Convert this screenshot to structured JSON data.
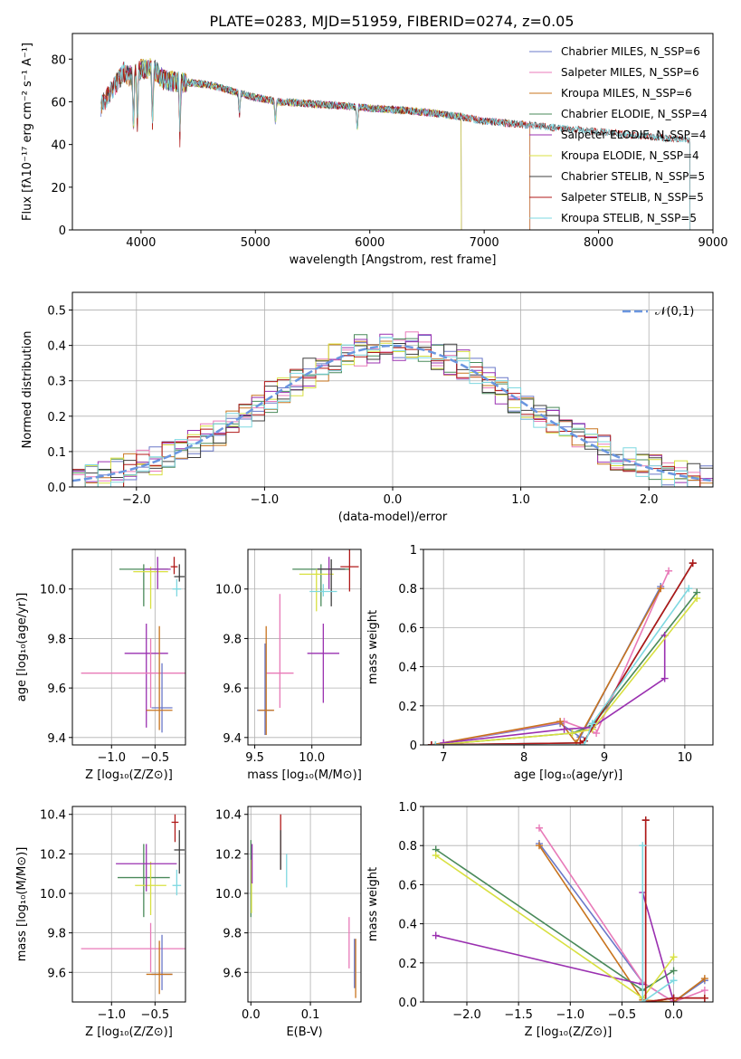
{
  "title": "PLATE=0283, MJD=51959, FIBERID=0274, z=0.05",
  "chart_data": [
    {
      "type": "line",
      "xlabel": "wavelength [Angstrom, rest frame]",
      "ylabel": "Flux [fλ10⁻¹⁷ erg cm⁻² s⁻¹ A⁻¹]",
      "xlim": [
        3400,
        9000
      ],
      "ylim": [
        0,
        92
      ],
      "xticks": [
        4000,
        5000,
        6000,
        7000,
        8000,
        9000
      ],
      "yticks": [
        0,
        20,
        40,
        60,
        80
      ],
      "legend_loc": "upper right",
      "series": [
        {
          "name": "Chabrier MILES, N_SSP=6",
          "color": "#6a78c8",
          "range": [
            3650,
            7400
          ]
        },
        {
          "name": "Salpeter MILES, N_SSP=6",
          "color": "#e87ab8",
          "range": [
            3650,
            7400
          ]
        },
        {
          "name": "Kroupa MILES, N_SSP=6",
          "color": "#c8741e",
          "range": [
            3650,
            7400
          ]
        },
        {
          "name": "Chabrier ELODIE, N_SSP=4",
          "color": "#4a8a5a",
          "range": [
            3900,
            6800
          ]
        },
        {
          "name": "Salpeter ELODIE, N_SSP=4",
          "color": "#9a30b0",
          "range": [
            3900,
            6800
          ]
        },
        {
          "name": "Kroupa ELODIE, N_SSP=4",
          "color": "#d8e040",
          "range": [
            3900,
            6800
          ]
        },
        {
          "name": "Chabrier STELIB, N_SSP=5",
          "color": "#404040",
          "range": [
            3650,
            8800
          ]
        },
        {
          "name": "Salpeter STELIB, N_SSP=5",
          "color": "#b01818",
          "range": [
            3650,
            8800
          ]
        },
        {
          "name": "Kroupa STELIB, N_SSP=5",
          "color": "#7ed8e0",
          "range": [
            3650,
            8800
          ]
        }
      ],
      "data_envelope": {
        "x": [
          3650,
          3700,
          3750,
          3800,
          3850,
          3900,
          4000,
          4100,
          4200,
          4400,
          4600,
          4800,
          5000,
          5200,
          5500,
          5800,
          6000,
          6300,
          6500,
          6800,
          7000,
          7400,
          7800,
          8200,
          8600,
          8800
        ],
        "y": [
          58,
          62,
          66,
          70,
          74,
          72,
          75,
          76,
          70,
          69,
          68,
          65,
          62,
          60,
          59,
          58,
          57,
          56,
          55,
          53,
          51,
          49,
          47,
          45,
          43,
          42
        ]
      },
      "segment_colors": [
        "#6a78c8",
        "#e87ab8",
        "#c8741e",
        "#4a8a5a",
        "#9a30b0",
        "#d8e040",
        "#404040",
        "#b01818",
        "#7ed8e0"
      ]
    },
    {
      "type": "histogram",
      "xlabel": "(data-model)/error",
      "ylabel": "Normed distribution",
      "xlim": [
        -2.5,
        2.5
      ],
      "ylim": [
        0,
        0.55
      ],
      "xticks": [
        -2,
        -1,
        0,
        1,
        2
      ],
      "yticks": [
        0.0,
        0.1,
        0.2,
        0.3,
        0.4,
        0.5
      ],
      "grid": true,
      "legend_loc": "upper right",
      "reference": {
        "name": "𝒩(0,1)",
        "color": "#6a96e0"
      },
      "bin_width": 0.1,
      "series_colors": [
        "#6a78c8",
        "#e87ab8",
        "#c8741e",
        "#4a8a5a",
        "#9a30b0",
        "#d8e040",
        "#404040",
        "#b01818",
        "#7ed8e0"
      ]
    },
    {
      "type": "scatter",
      "xlabel": "Z [log₁₀(Z/Z⊙)]",
      "ylabel": "age  [log₁₀(age/yr)]",
      "xlim": [
        -1.45,
        -0.15
      ],
      "ylim": [
        9.37,
        10.16
      ],
      "xticks": [
        -1.0,
        -0.5
      ],
      "yticks": [
        9.4,
        9.6,
        9.8,
        10.0
      ],
      "grid": true,
      "points": [
        {
          "x": -0.63,
          "y": 10.08,
          "xe": 0.28,
          "ye": [
            0.15,
            0.02
          ],
          "color": "#4a8a5a"
        },
        {
          "x": -0.55,
          "y": 10.07,
          "xe": 0.2,
          "ye": [
            0.15,
            0.02
          ],
          "color": "#d8e040"
        },
        {
          "x": -0.47,
          "y": 10.08,
          "xe": 0.15,
          "ye": [
            0.08,
            0.05
          ],
          "color": "#9a30b0"
        },
        {
          "x": -0.28,
          "y": 10.09,
          "xe": 0.04,
          "ye": [
            0.03,
            0.04
          ],
          "color": "#b01818"
        },
        {
          "x": -0.22,
          "y": 10.05,
          "xe": 0.06,
          "ye": [
            0.02,
            0.05
          ],
          "color": "#404040"
        },
        {
          "x": -0.25,
          "y": 10.0,
          "xe": 0.05,
          "ye": [
            0.03,
            0.04
          ],
          "color": "#7ed8e0"
        },
        {
          "x": -0.6,
          "y": 9.74,
          "xe": 0.25,
          "ye": [
            0.3,
            0.12
          ],
          "color": "#9a30b0"
        },
        {
          "x": -0.55,
          "y": 9.66,
          "xe": 0.8,
          "ye": [
            0.14,
            0.14
          ],
          "color": "#e87ab8"
        },
        {
          "x": -0.42,
          "y": 9.52,
          "xe": 0.12,
          "ye": [
            0.1,
            0.18
          ],
          "color": "#6a78c8"
        },
        {
          "x": -0.45,
          "y": 9.51,
          "xe": 0.15,
          "ye": [
            0.08,
            0.34
          ],
          "color": "#c8741e"
        }
      ]
    },
    {
      "type": "scatter",
      "xlabel": "mass [log₁₀(M/M⊙)]",
      "ylabel": "",
      "xlim": [
        9.44,
        10.43
      ],
      "ylim": [
        9.37,
        10.16
      ],
      "xticks": [
        9.5,
        10.0
      ],
      "yticks": [
        9.4,
        9.6,
        9.8,
        10.0
      ],
      "grid": true,
      "points": [
        {
          "x": 10.08,
          "y": 10.08,
          "xe": 0.25,
          "ye": [
            0.15,
            0.02
          ],
          "color": "#4a8a5a"
        },
        {
          "x": 10.04,
          "y": 10.06,
          "xe": 0.15,
          "ye": [
            0.15,
            0.02
          ],
          "color": "#d8e040"
        },
        {
          "x": 10.15,
          "y": 10.08,
          "xe": 0.1,
          "ye": [
            0.08,
            0.05
          ],
          "color": "#9a30b0"
        },
        {
          "x": 10.33,
          "y": 10.09,
          "xe": 0.08,
          "ye": [
            0.1,
            0.1
          ],
          "color": "#b01818"
        },
        {
          "x": 10.17,
          "y": 10.08,
          "xe": 0.12,
          "ye": [
            0.15,
            0.04
          ],
          "color": "#404040"
        },
        {
          "x": 10.1,
          "y": 9.99,
          "xe": 0.12,
          "ye": [
            0.02,
            0.03
          ],
          "color": "#7ed8e0"
        },
        {
          "x": 10.1,
          "y": 9.74,
          "xe": 0.14,
          "ye": [
            0.2,
            0.12
          ],
          "color": "#9a30b0"
        },
        {
          "x": 9.72,
          "y": 9.66,
          "xe": 0.12,
          "ye": [
            0.14,
            0.32
          ],
          "color": "#e87ab8"
        },
        {
          "x": 9.59,
          "y": 9.51,
          "xe": 0.07,
          "ye": [
            0.1,
            0.27
          ],
          "color": "#6a78c8"
        },
        {
          "x": 9.6,
          "y": 9.51,
          "xe": 0.07,
          "ye": [
            0.1,
            0.34
          ],
          "color": "#c8741e"
        }
      ]
    },
    {
      "type": "line",
      "xlabel": "age  [log₁₀(age/yr)]",
      "ylabel": "mass weight",
      "xlim": [
        6.75,
        10.35
      ],
      "ylim": [
        0,
        1.0
      ],
      "xticks": [
        7,
        8,
        9,
        10
      ],
      "yticks": [
        0.0,
        0.2,
        0.4,
        0.6,
        0.8,
        1.0
      ],
      "grid": true,
      "series": [
        {
          "color": "#6a78c8",
          "x": [
            6.85,
            8.45,
            8.7,
            9.7
          ],
          "y": [
            0.0,
            0.11,
            0.04,
            0.81
          ]
        },
        {
          "color": "#e87ab8",
          "x": [
            6.85,
            8.5,
            8.9,
            9.8
          ],
          "y": [
            0.0,
            0.12,
            0.06,
            0.89
          ]
        },
        {
          "color": "#c8741e",
          "x": [
            6.85,
            8.45,
            8.65,
            9.7
          ],
          "y": [
            0.0,
            0.12,
            0.01,
            0.8
          ]
        },
        {
          "color": "#4a8a5a",
          "x": [
            6.9,
            8.6,
            8.85,
            10.15
          ],
          "y": [
            0.0,
            0.06,
            0.1,
            0.78
          ]
        },
        {
          "color": "#9a30b0",
          "x": [
            7.0,
            8.5,
            8.85,
            9.75,
            9.75
          ],
          "y": [
            0.01,
            0.08,
            0.09,
            0.34,
            0.56
          ]
        },
        {
          "color": "#d8e040",
          "x": [
            6.9,
            8.6,
            8.85,
            10.15
          ],
          "y": [
            0.0,
            0.06,
            0.08,
            0.75
          ]
        },
        {
          "color": "#404040",
          "x": [
            6.85,
            8.7,
            8.75,
            10.1
          ],
          "y": [
            0.0,
            0.01,
            0.02,
            0.93
          ]
        },
        {
          "color": "#b01818",
          "x": [
            6.85,
            8.7,
            8.75,
            10.1
          ],
          "y": [
            0.0,
            0.01,
            0.02,
            0.93
          ]
        },
        {
          "color": "#7ed8e0",
          "x": [
            6.9,
            8.75,
            8.85,
            10.05
          ],
          "y": [
            0.0,
            0.0,
            0.11,
            0.8
          ]
        }
      ]
    },
    {
      "type": "scatter",
      "xlabel": "Z [log₁₀(Z/Z⊙)]",
      "ylabel": "mass [log₁₀(M/M⊙)]",
      "xlim": [
        -1.45,
        -0.15
      ],
      "ylim": [
        9.45,
        10.44
      ],
      "xticks": [
        -1.0,
        -0.5
      ],
      "yticks": [
        9.6,
        9.8,
        10.0,
        10.2,
        10.4
      ],
      "grid": true,
      "points": [
        {
          "x": -0.63,
          "y": 10.08,
          "xe": 0.3,
          "ye": [
            0.2,
            0.17
          ],
          "color": "#4a8a5a"
        },
        {
          "x": -0.55,
          "y": 10.04,
          "xe": 0.18,
          "ye": [
            0.15,
            0.12
          ],
          "color": "#d8e040"
        },
        {
          "x": -0.6,
          "y": 10.15,
          "xe": 0.35,
          "ye": [
            0.14,
            0.1
          ],
          "color": "#9a30b0"
        },
        {
          "x": -0.27,
          "y": 10.36,
          "xe": 0.04,
          "ye": [
            0.1,
            0.04
          ],
          "color": "#b01818"
        },
        {
          "x": -0.22,
          "y": 10.22,
          "xe": 0.06,
          "ye": [
            0.12,
            0.1
          ],
          "color": "#404040"
        },
        {
          "x": -0.25,
          "y": 10.04,
          "xe": 0.05,
          "ye": [
            0.05,
            0.08
          ],
          "color": "#7ed8e0"
        },
        {
          "x": -0.55,
          "y": 9.72,
          "xe": 0.8,
          "ye": [
            0.12,
            0.13
          ],
          "color": "#e87ab8"
        },
        {
          "x": -0.42,
          "y": 9.59,
          "xe": 0.12,
          "ye": [
            0.08,
            0.2
          ],
          "color": "#6a78c8"
        },
        {
          "x": -0.45,
          "y": 9.59,
          "xe": 0.15,
          "ye": [
            0.1,
            0.17
          ],
          "color": "#c8741e"
        }
      ]
    },
    {
      "type": "scatter",
      "xlabel": "E(B-V)",
      "ylabel": "",
      "xlim": [
        -0.005,
        0.185
      ],
      "ylim": [
        9.45,
        10.44
      ],
      "xticks": [
        0.0,
        0.1
      ],
      "yticks": [
        9.6,
        9.8,
        10.0,
        10.2,
        10.4
      ],
      "grid": true,
      "points": [
        {
          "x": 0.0,
          "y": 10.1,
          "ye": [
            0.22,
            0.17
          ],
          "color": "#4a8a5a"
        },
        {
          "x": 0.001,
          "y": 10.05,
          "ye": [
            0.15,
            0.12
          ],
          "color": "#d8e040"
        },
        {
          "x": 0.002,
          "y": 10.15,
          "ye": [
            0.1,
            0.1
          ],
          "color": "#9a30b0"
        },
        {
          "x": 0.05,
          "y": 10.27,
          "ye": [
            0.15,
            0.13
          ],
          "color": "#b01818"
        },
        {
          "x": 0.05,
          "y": 10.22,
          "ye": [
            0.1,
            0.1
          ],
          "color": "#404040"
        },
        {
          "x": 0.06,
          "y": 10.1,
          "ye": [
            0.07,
            0.1
          ],
          "color": "#7ed8e0"
        },
        {
          "x": 0.165,
          "y": 9.72,
          "ye": [
            0.1,
            0.16
          ],
          "color": "#e87ab8"
        },
        {
          "x": 0.174,
          "y": 9.65,
          "ye": [
            0.13,
            0.12
          ],
          "color": "#6a78c8"
        },
        {
          "x": 0.176,
          "y": 9.62,
          "ye": [
            0.15,
            0.15
          ],
          "color": "#c8741e"
        }
      ]
    },
    {
      "type": "line",
      "xlabel": "Z [log₁₀(Z/Z⊙)]",
      "ylabel": "mass weight",
      "xlim": [
        -2.42,
        0.38
      ],
      "ylim": [
        0,
        1.0
      ],
      "xticks": [
        -2.0,
        -1.5,
        -1.0,
        -0.5,
        0.0
      ],
      "yticks": [
        0.0,
        0.2,
        0.4,
        0.6,
        0.8,
        1.0
      ],
      "grid": true,
      "series": [
        {
          "color": "#6a78c8",
          "x": [
            -1.3,
            -0.3,
            0.0,
            0.3
          ],
          "y": [
            0.81,
            0.1,
            0.0,
            0.11
          ]
        },
        {
          "color": "#e87ab8",
          "x": [
            -1.3,
            -0.3,
            0.0,
            0.3
          ],
          "y": [
            0.89,
            0.1,
            0.0,
            0.06
          ]
        },
        {
          "color": "#c8741e",
          "x": [
            -1.3,
            -0.3,
            0.0,
            0.3
          ],
          "y": [
            0.8,
            0.01,
            0.0,
            0.12
          ]
        },
        {
          "color": "#4a8a5a",
          "x": [
            -2.3,
            -0.3,
            0.0
          ],
          "y": [
            0.78,
            0.06,
            0.16
          ]
        },
        {
          "color": "#9a30b0",
          "x": [
            -2.3,
            -0.3,
            -0.3,
            0.0
          ],
          "y": [
            0.34,
            0.09,
            0.56,
            0.0
          ]
        },
        {
          "color": "#d8e040",
          "x": [
            -2.3,
            -0.3,
            0.0
          ],
          "y": [
            0.75,
            0.02,
            0.23
          ]
        },
        {
          "color": "#404040",
          "x": [
            -0.27,
            -0.27,
            0.0,
            0.3
          ],
          "y": [
            0.93,
            0.0,
            0.02,
            0.02
          ]
        },
        {
          "color": "#b01818",
          "x": [
            -0.27,
            -0.27,
            0.0,
            0.3
          ],
          "y": [
            0.93,
            0.0,
            0.02,
            0.02
          ]
        },
        {
          "color": "#7ed8e0",
          "x": [
            -0.3,
            -0.3,
            0.0
          ],
          "y": [
            0.8,
            0.0,
            0.11
          ]
        }
      ]
    }
  ]
}
